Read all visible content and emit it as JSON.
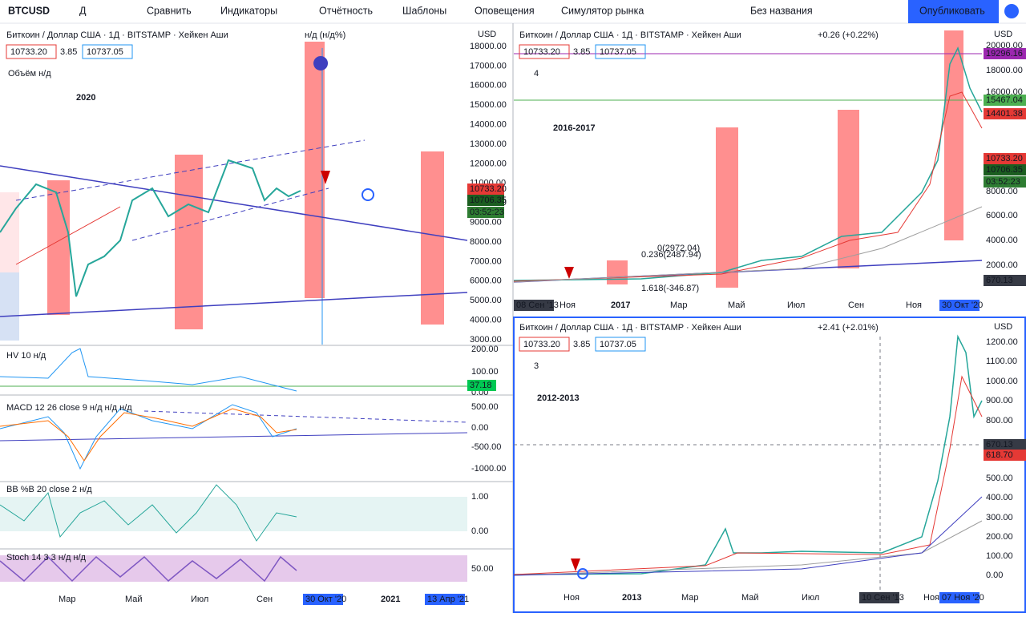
{
  "toolbar": {
    "symbol": "BTCUSD",
    "interval": "Д",
    "items": [
      "Сравнить",
      "Индикаторы",
      "Отчётность",
      "Шаблоны",
      "Оповещения",
      "Симулятор рынка"
    ],
    "layout_name": "Без названия",
    "publish": "Опубликовать"
  },
  "panes": [
    {
      "title": "Биткоин / Доллар США · 1Д · BITSTAMP · Хейкен Аши",
      "change": "н/д (н/д%)",
      "bid": "10733.20",
      "spread": "3.85",
      "ask": "10737.05",
      "currency": "USD",
      "annotation": "2020",
      "volume": "Объём н/д",
      "price_axis": [
        "18000.00",
        "17000.00",
        "16000.00",
        "15000.00",
        "14000.00",
        "13000.00",
        "12000.00",
        "11000.00",
        "10000.00",
        "9000.00",
        "8000.00",
        "7000.00",
        "6000.00",
        "5000.00",
        "4000.00",
        "3000.00"
      ],
      "price_tags": [
        "10733.20",
        "10706.35",
        "03:52:23"
      ],
      "time_axis": [
        "Мар",
        "Май",
        "Июл",
        "Сен",
        "30 Окт '20",
        "2021",
        "13 Апр '21"
      ],
      "indicators": [
        {
          "label": "HV 10 н/д",
          "axis": [
            "200.00",
            "100.00",
            "0.00"
          ],
          "tag": "37.18"
        },
        {
          "label": "MACD 12 26 close 9 н/д н/д н/д",
          "axis": [
            "500.00",
            "0.00",
            "-500.00",
            "-1000.00"
          ]
        },
        {
          "label": "BB %B 20 close 2 н/д",
          "axis": [
            "1.00",
            "0.00"
          ]
        },
        {
          "label": "Stoch 14 3 3 н/д н/д",
          "axis": [
            "50.00"
          ]
        }
      ]
    },
    {
      "title": "Биткоин / Доллар США · 1Д · BITSTAMP · Хейкен Аши",
      "change": "+0.26 (+0.22%)",
      "bid": "10733.20",
      "spread": "3.85",
      "ask": "10737.05",
      "currency": "USD",
      "annotation": "2016-2017",
      "legend_count": "4",
      "price_axis": [
        "20000.00",
        "18000.00",
        "16000.00",
        "8000.00",
        "6000.00",
        "4000.00",
        "2000.00"
      ],
      "price_tags": [
        "19296.16",
        "15467.04",
        "14401.38",
        "10733.20",
        "10706.35",
        "03:52:23",
        "670.13"
      ],
      "fib": [
        "0(2972.04)",
        "0.236(2487.94)",
        "1.618(-346.87)"
      ],
      "time_axis": [
        "08 Сен '13",
        "Ноя",
        "2017",
        "Мар",
        "Май",
        "Июл",
        "Сен",
        "Ноя",
        "30 Окт '20"
      ]
    },
    {
      "title": "Биткоин / Доллар США · 1Д · BITSTAMP · Хейкен Аши",
      "change": "+2.41 (+2.01%)",
      "bid": "10733.20",
      "spread": "3.85",
      "ask": "10737.05",
      "currency": "USD",
      "annotation": "2012-2013",
      "legend_count": "3",
      "price_axis": [
        "1200.00",
        "1100.00",
        "1000.00",
        "900.00",
        "800.00",
        "500.00",
        "400.00",
        "300.00",
        "200.00",
        "100.00",
        "0.00"
      ],
      "price_tags": [
        "670.13",
        "618.70"
      ],
      "time_axis": [
        "Ноя",
        "2013",
        "Мар",
        "Май",
        "Июл",
        "10 Сен '13",
        "Ноя",
        "07 Ноя '20"
      ]
    }
  ]
}
